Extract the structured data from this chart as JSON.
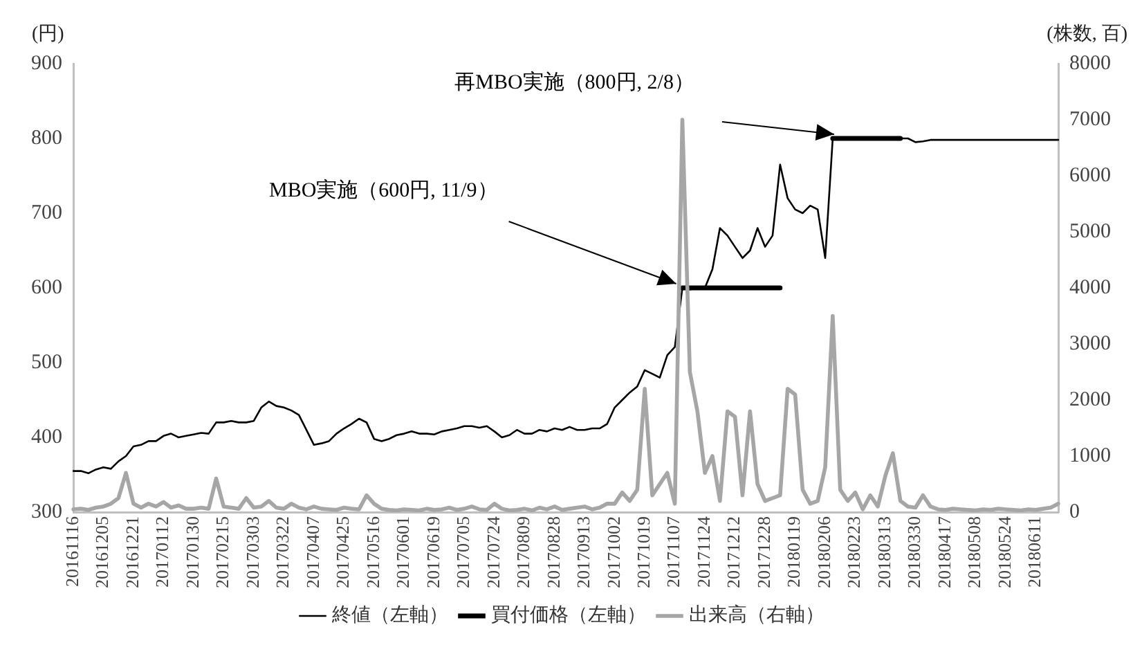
{
  "chart_data": {
    "type": "line",
    "ylabel": "(円)",
    "y2label": "(株数, 百)",
    "categories": [
      "20161116",
      null,
      null,
      null,
      "20161205",
      null,
      null,
      null,
      "20161221",
      null,
      null,
      null,
      "20170112",
      null,
      null,
      null,
      "20170130",
      null,
      null,
      null,
      "20170215",
      null,
      null,
      null,
      "20170303",
      null,
      null,
      null,
      "20170322",
      null,
      null,
      null,
      "20170407",
      null,
      null,
      null,
      "20170425",
      null,
      null,
      null,
      "20170516",
      null,
      null,
      null,
      "20170601",
      null,
      null,
      null,
      "20170619",
      null,
      null,
      null,
      "20170705",
      null,
      null,
      null,
      "20170724",
      null,
      null,
      null,
      "20170809",
      null,
      null,
      null,
      "20170828",
      null,
      null,
      null,
      "20170913",
      null,
      null,
      null,
      "20171002",
      null,
      null,
      null,
      "20171019",
      null,
      null,
      null,
      "20171107",
      null,
      null,
      null,
      "20171124",
      null,
      null,
      null,
      "20171212",
      null,
      null,
      null,
      "20171228",
      null,
      null,
      null,
      "20180119",
      null,
      null,
      null,
      "20180206",
      null,
      null,
      null,
      "20180223",
      null,
      null,
      null,
      "20180313",
      null,
      null,
      null,
      "20180330",
      null,
      null,
      null,
      "20180417",
      null,
      null,
      null,
      "20180508",
      null,
      null,
      null,
      "20180524",
      null,
      null,
      null,
      "20180611",
      null,
      null,
      null
    ],
    "series": [
      {
        "name": "終値（左軸）",
        "color": "#000000",
        "values": [
          355,
          355,
          352,
          357,
          360,
          358,
          368,
          375,
          388,
          390,
          395,
          395,
          402,
          405,
          400,
          402,
          404,
          406,
          405,
          420,
          420,
          422,
          420,
          420,
          422,
          440,
          448,
          442,
          440,
          436,
          430,
          410,
          390,
          392,
          395,
          405,
          412,
          418,
          425,
          420,
          398,
          395,
          398,
          403,
          405,
          408,
          405,
          405,
          404,
          408,
          410,
          412,
          415,
          415,
          413,
          415,
          408,
          400,
          403,
          410,
          405,
          405,
          410,
          408,
          412,
          410,
          414,
          410,
          410,
          412,
          412,
          418,
          440,
          450,
          460,
          468,
          490,
          485,
          480,
          510,
          521,
          600,
          598,
          600,
          600,
          625,
          680,
          670,
          655,
          640,
          650,
          680,
          655,
          670,
          765,
          720,
          705,
          700,
          710,
          705,
          640,
          800,
          800,
          800,
          800,
          800,
          800,
          800,
          800,
          800,
          800,
          800,
          795,
          796,
          798,
          798,
          798,
          798,
          798,
          798,
          798,
          798,
          798,
          798,
          798,
          798,
          798,
          798,
          798,
          798,
          798,
          798
        ]
      },
      {
        "name": "買付価格（左軸）",
        "color": "#000000",
        "values": [
          null,
          null,
          null,
          null,
          null,
          null,
          null,
          null,
          null,
          null,
          null,
          null,
          null,
          null,
          null,
          null,
          null,
          null,
          null,
          null,
          null,
          null,
          null,
          null,
          null,
          null,
          null,
          null,
          null,
          null,
          null,
          null,
          null,
          null,
          null,
          null,
          null,
          null,
          null,
          null,
          null,
          null,
          null,
          null,
          null,
          null,
          null,
          null,
          null,
          null,
          null,
          null,
          null,
          null,
          null,
          null,
          null,
          null,
          null,
          null,
          null,
          null,
          null,
          null,
          null,
          null,
          null,
          null,
          null,
          null,
          null,
          null,
          null,
          null,
          null,
          null,
          null,
          null,
          null,
          null,
          null,
          600,
          600,
          600,
          600,
          600,
          600,
          600,
          600,
          600,
          600,
          600,
          600,
          600,
          600,
          null,
          null,
          null,
          null,
          null,
          null,
          800,
          800,
          800,
          800,
          800,
          800,
          800,
          800,
          800,
          800,
          null,
          null,
          null,
          null,
          null,
          null,
          null,
          null,
          null,
          null,
          null,
          null,
          null,
          null,
          null,
          null,
          null,
          null,
          null,
          null,
          null
        ]
      },
      {
        "name": "出来高（右軸）",
        "color": "#a6a6a6",
        "axis": "y2",
        "values": [
          50,
          60,
          40,
          80,
          100,
          150,
          250,
          700,
          150,
          80,
          150,
          100,
          180,
          80,
          120,
          60,
          60,
          80,
          60,
          600,
          100,
          80,
          60,
          250,
          80,
          100,
          200,
          80,
          60,
          150,
          80,
          50,
          100,
          60,
          50,
          40,
          80,
          60,
          50,
          300,
          150,
          60,
          40,
          30,
          50,
          40,
          30,
          60,
          40,
          50,
          80,
          40,
          60,
          100,
          50,
          40,
          150,
          60,
          30,
          40,
          60,
          30,
          80,
          50,
          100,
          40,
          60,
          80,
          100,
          50,
          80,
          150,
          150,
          350,
          200,
          400,
          2200,
          300,
          500,
          700,
          150,
          7000,
          2500,
          1800,
          700,
          1000,
          200,
          1800,
          1700,
          300,
          1800,
          500,
          200,
          250,
          300,
          2200,
          2100,
          400,
          150,
          200,
          800,
          3500,
          400,
          200,
          350,
          50,
          300,
          100,
          650,
          1050,
          200,
          100,
          80,
          300,
          100,
          50,
          40,
          60,
          50,
          40,
          30,
          50,
          40,
          60,
          50,
          40,
          30,
          50,
          40,
          60,
          80,
          150
        ]
      }
    ],
    "ylim": [
      300,
      900
    ],
    "yticks": [
      300,
      400,
      500,
      600,
      700,
      800,
      900
    ],
    "y2lim": [
      0,
      8000
    ],
    "y2ticks": [
      0,
      1000,
      2000,
      3000,
      4000,
      5000,
      6000,
      7000,
      8000
    ],
    "annotations": [
      {
        "text": "MBO実施（600円, 11/9）",
        "x": "20171107",
        "y": 600
      },
      "再MBO実施（800円, 2/8）"
    ],
    "grid": false,
    "legend": "bottom",
    "marker": "none",
    "line_style": "solid"
  }
}
